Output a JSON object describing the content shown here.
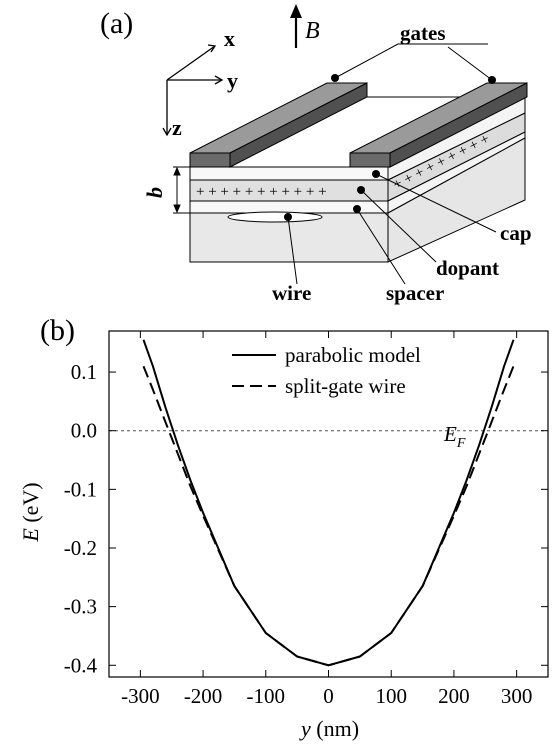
{
  "panel_a": {
    "label": "(a)",
    "axes": {
      "x": "x",
      "y": "y",
      "z": "z"
    },
    "field": "B",
    "callouts": {
      "gates": "gates",
      "cap": "cap",
      "dopant": "dopant",
      "spacer": "spacer",
      "wire": "wire",
      "thickness": "b"
    },
    "plus_front": "+ + + + + + + + + + +",
    "plus_side": "+ + + + + + + + +"
  },
  "panel_b": {
    "label": "(b)",
    "fermi_label": "E",
    "fermi_sub": "F"
  },
  "chart_data": {
    "type": "line",
    "title": "",
    "xlabel_var": "y",
    "xlabel_unit": "(nm)",
    "ylabel_var": "E",
    "ylabel_unit": "(eV)",
    "xlim": [
      -350,
      350
    ],
    "ylim": [
      -0.42,
      0.17
    ],
    "xticks": [
      -300,
      -200,
      -100,
      0,
      100,
      200,
      300
    ],
    "yticks": [
      -0.4,
      -0.3,
      -0.2,
      -0.1,
      0.0,
      0.1
    ],
    "ytick_labels": [
      "-0.4",
      "-0.3",
      "-0.2",
      "-0.1",
      "0.0",
      "0.1"
    ],
    "xtick_labels": [
      "-300",
      "-200",
      "-100",
      "0",
      "100",
      "200",
      "300"
    ],
    "fermi_level": 0.0,
    "legend_position": "top-center",
    "series": [
      {
        "name": "parabolic model",
        "style": "solid",
        "x": [
          -295,
          -280,
          -260,
          -240,
          -220,
          -200,
          -150,
          -100,
          -50,
          0,
          50,
          100,
          150,
          200,
          220,
          240,
          260,
          280,
          295
        ],
        "y": [
          0.155,
          0.11,
          0.04,
          -0.025,
          -0.085,
          -0.14,
          -0.265,
          -0.345,
          -0.385,
          -0.4,
          -0.385,
          -0.345,
          -0.265,
          -0.14,
          -0.085,
          -0.025,
          0.04,
          0.11,
          0.155
        ]
      },
      {
        "name": "split-gate wire",
        "style": "dashed",
        "x": [
          -295,
          -280,
          -260,
          -240,
          -220,
          -200,
          -150,
          -100,
          -50,
          0,
          50,
          100,
          150,
          200,
          220,
          240,
          260,
          280,
          295
        ],
        "y": [
          0.11,
          0.07,
          0.015,
          -0.04,
          -0.095,
          -0.145,
          -0.265,
          -0.345,
          -0.385,
          -0.4,
          -0.385,
          -0.345,
          -0.265,
          -0.145,
          -0.095,
          -0.04,
          0.015,
          0.07,
          0.11
        ]
      }
    ]
  }
}
